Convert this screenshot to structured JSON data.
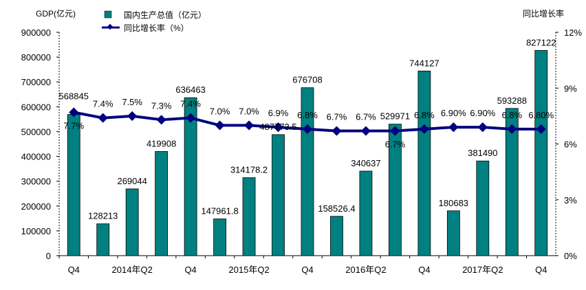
{
  "chart_data": {
    "type": "bar",
    "title": "",
    "ylabel": "GDP(亿元)",
    "y2label": "同比增长率",
    "ylim": [
      0,
      900000
    ],
    "y2lim": [
      0,
      12
    ],
    "yticks": [
      "0",
      "100000",
      "200000",
      "300000",
      "400000",
      "500000",
      "600000",
      "700000",
      "800000",
      "900000"
    ],
    "y2ticks": [
      "0%",
      "3%",
      "6%",
      "9%",
      "12%"
    ],
    "categories": [
      "Q4",
      "",
      "2014年Q2",
      "",
      "Q4",
      "",
      "2015年Q2",
      "",
      "Q4",
      "",
      "2016年Q2",
      "",
      "Q4",
      "",
      "2017年Q2",
      "",
      "Q4"
    ],
    "legend": {
      "position": "top",
      "bar": "国内生产总值（亿元）",
      "line": "同比增长率（%）"
    },
    "series": [
      {
        "name": "国内生产总值（亿元）",
        "type": "bar",
        "color": "#008080",
        "values": [
          568845,
          128213,
          269044,
          419908,
          636463,
          147961.8,
          314178.2,
          487773.5,
          676708,
          158526.4,
          340637,
          529971,
          744127,
          180683,
          381490,
          593288,
          827122
        ],
        "labels": [
          "568845",
          "128213",
          "269044",
          "419908",
          "636463",
          "147961.8",
          "314178.2",
          "487773.5",
          "676708",
          "158526.4",
          "340637",
          "529971",
          "744127",
          "180683",
          "381490",
          "593288",
          "827122"
        ]
      },
      {
        "name": "同比增长率（%）",
        "type": "line",
        "color": "#000080",
        "values": [
          7.7,
          7.4,
          7.5,
          7.3,
          7.4,
          7.0,
          7.0,
          6.9,
          6.8,
          6.7,
          6.7,
          6.7,
          6.8,
          6.9,
          6.9,
          6.8,
          6.8
        ],
        "labels": [
          "7.7%",
          "7.4%",
          "7.5%",
          "7.3%",
          "7.4%",
          "7.0%",
          "7.0%",
          "6.9%",
          "6.8%",
          "6.7%",
          "6.7%",
          "6.7%",
          "6.8%",
          "6.90%",
          "6.90%",
          "6.8%",
          "6.80%"
        ]
      }
    ]
  }
}
